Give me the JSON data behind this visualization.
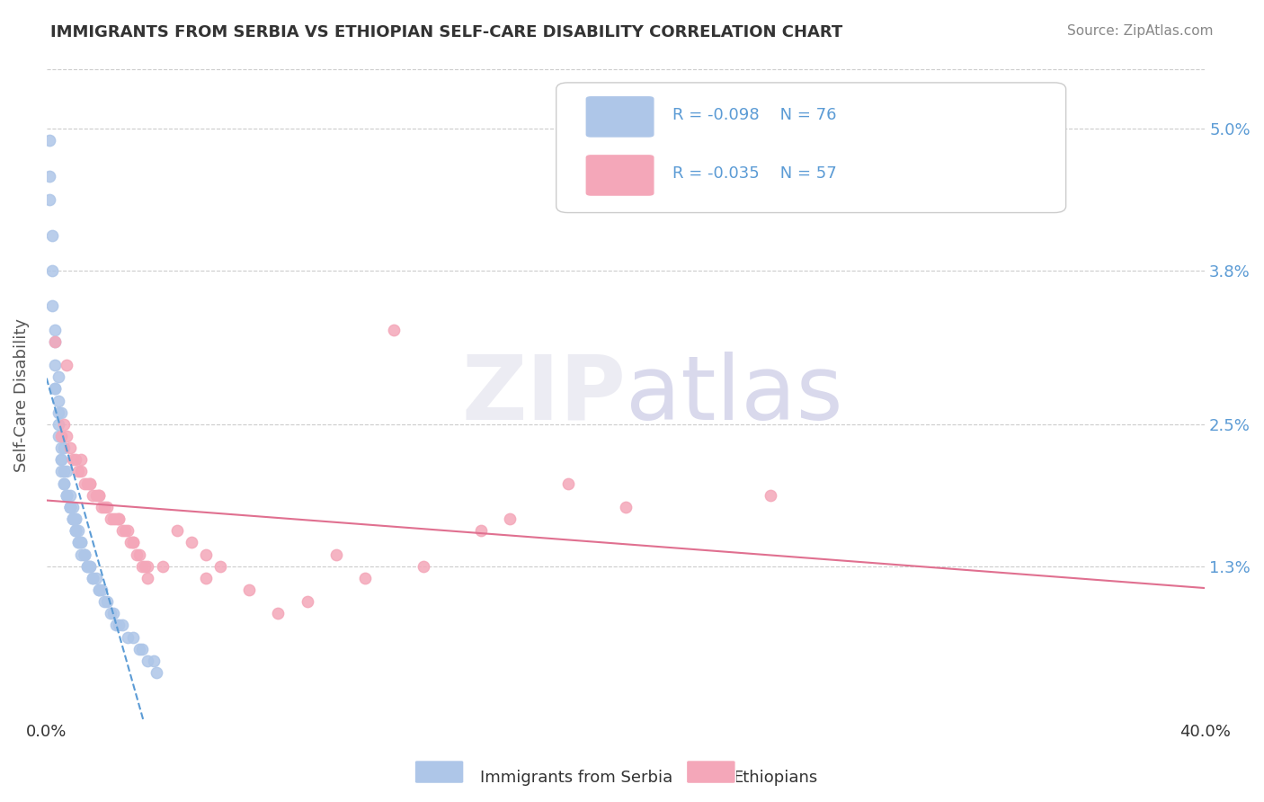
{
  "title": "IMMIGRANTS FROM SERBIA VS ETHIOPIAN SELF-CARE DISABILITY CORRELATION CHART",
  "source": "Source: ZipAtlas.com",
  "xlabel": "",
  "ylabel": "Self-Care Disability",
  "xlim": [
    0.0,
    0.4
  ],
  "ylim": [
    0.0,
    0.055
  ],
  "yticks": [
    0.013,
    0.025,
    0.038,
    0.05
  ],
  "ytick_labels": [
    "1.3%",
    "2.5%",
    "3.8%",
    "5.0%"
  ],
  "xticks": [
    0.0,
    0.4
  ],
  "xtick_labels": [
    "0.0%",
    "40.0%"
  ],
  "legend_r1": "R = -0.098",
  "legend_n1": "N = 76",
  "legend_r2": "R = -0.035",
  "legend_n2": "N = 57",
  "serbia_color": "#aec6e8",
  "ethiopia_color": "#f4a7b9",
  "trend_serbia_color": "#5b9bd5",
  "trend_ethiopia_color": "#e07090",
  "watermark_zip": "ZIP",
  "watermark_atlas": "atlas",
  "legend_bottom_1": "Immigrants from Serbia",
  "legend_bottom_2": "Ethiopians",
  "background_color": "#ffffff",
  "serbia_points": [
    [
      0.001,
      0.049
    ],
    [
      0.001,
      0.046
    ],
    [
      0.002,
      0.038
    ],
    [
      0.002,
      0.035
    ],
    [
      0.003,
      0.032
    ],
    [
      0.003,
      0.03
    ],
    [
      0.003,
      0.028
    ],
    [
      0.004,
      0.027
    ],
    [
      0.004,
      0.025
    ],
    [
      0.004,
      0.024
    ],
    [
      0.005,
      0.023
    ],
    [
      0.005,
      0.022
    ],
    [
      0.005,
      0.022
    ],
    [
      0.005,
      0.021
    ],
    [
      0.006,
      0.021
    ],
    [
      0.006,
      0.02
    ],
    [
      0.006,
      0.02
    ],
    [
      0.007,
      0.019
    ],
    [
      0.007,
      0.019
    ],
    [
      0.007,
      0.019
    ],
    [
      0.008,
      0.018
    ],
    [
      0.008,
      0.018
    ],
    [
      0.008,
      0.018
    ],
    [
      0.008,
      0.018
    ],
    [
      0.009,
      0.017
    ],
    [
      0.009,
      0.017
    ],
    [
      0.009,
      0.017
    ],
    [
      0.01,
      0.017
    ],
    [
      0.01,
      0.016
    ],
    [
      0.01,
      0.016
    ],
    [
      0.01,
      0.016
    ],
    [
      0.011,
      0.016
    ],
    [
      0.011,
      0.015
    ],
    [
      0.011,
      0.015
    ],
    [
      0.012,
      0.015
    ],
    [
      0.012,
      0.015
    ],
    [
      0.012,
      0.014
    ],
    [
      0.013,
      0.014
    ],
    [
      0.013,
      0.014
    ],
    [
      0.013,
      0.014
    ],
    [
      0.014,
      0.013
    ],
    [
      0.014,
      0.013
    ],
    [
      0.015,
      0.013
    ],
    [
      0.015,
      0.013
    ],
    [
      0.016,
      0.012
    ],
    [
      0.016,
      0.012
    ],
    [
      0.017,
      0.012
    ],
    [
      0.018,
      0.011
    ],
    [
      0.018,
      0.011
    ],
    [
      0.019,
      0.011
    ],
    [
      0.02,
      0.01
    ],
    [
      0.021,
      0.01
    ],
    [
      0.022,
      0.009
    ],
    [
      0.023,
      0.009
    ],
    [
      0.024,
      0.008
    ],
    [
      0.025,
      0.008
    ],
    [
      0.026,
      0.008
    ],
    [
      0.028,
      0.007
    ],
    [
      0.03,
      0.007
    ],
    [
      0.032,
      0.006
    ],
    [
      0.033,
      0.006
    ],
    [
      0.035,
      0.005
    ],
    [
      0.037,
      0.005
    ],
    [
      0.038,
      0.004
    ],
    [
      0.001,
      0.044
    ],
    [
      0.002,
      0.041
    ],
    [
      0.003,
      0.033
    ],
    [
      0.004,
      0.029
    ],
    [
      0.005,
      0.026
    ],
    [
      0.006,
      0.023
    ],
    [
      0.007,
      0.021
    ],
    [
      0.008,
      0.019
    ],
    [
      0.009,
      0.018
    ],
    [
      0.01,
      0.017
    ],
    [
      0.003,
      0.028
    ],
    [
      0.004,
      0.026
    ]
  ],
  "ethiopia_points": [
    [
      0.003,
      0.032
    ],
    [
      0.006,
      0.025
    ],
    [
      0.007,
      0.024
    ],
    [
      0.008,
      0.023
    ],
    [
      0.009,
      0.022
    ],
    [
      0.01,
      0.022
    ],
    [
      0.011,
      0.021
    ],
    [
      0.012,
      0.021
    ],
    [
      0.013,
      0.02
    ],
    [
      0.014,
      0.02
    ],
    [
      0.015,
      0.02
    ],
    [
      0.016,
      0.019
    ],
    [
      0.017,
      0.019
    ],
    [
      0.018,
      0.019
    ],
    [
      0.019,
      0.018
    ],
    [
      0.02,
      0.018
    ],
    [
      0.021,
      0.018
    ],
    [
      0.022,
      0.017
    ],
    [
      0.023,
      0.017
    ],
    [
      0.024,
      0.017
    ],
    [
      0.025,
      0.017
    ],
    [
      0.026,
      0.016
    ],
    [
      0.027,
      0.016
    ],
    [
      0.028,
      0.016
    ],
    [
      0.029,
      0.015
    ],
    [
      0.03,
      0.015
    ],
    [
      0.031,
      0.014
    ],
    [
      0.032,
      0.014
    ],
    [
      0.033,
      0.013
    ],
    [
      0.034,
      0.013
    ],
    [
      0.035,
      0.012
    ],
    [
      0.12,
      0.033
    ],
    [
      0.045,
      0.016
    ],
    [
      0.05,
      0.015
    ],
    [
      0.055,
      0.014
    ],
    [
      0.18,
      0.02
    ],
    [
      0.06,
      0.013
    ],
    [
      0.007,
      0.03
    ],
    [
      0.012,
      0.022
    ],
    [
      0.018,
      0.019
    ],
    [
      0.025,
      0.017
    ],
    [
      0.03,
      0.015
    ],
    [
      0.04,
      0.013
    ],
    [
      0.055,
      0.012
    ],
    [
      0.1,
      0.014
    ],
    [
      0.15,
      0.016
    ],
    [
      0.2,
      0.018
    ],
    [
      0.25,
      0.019
    ],
    [
      0.005,
      0.024
    ],
    [
      0.015,
      0.02
    ],
    [
      0.035,
      0.013
    ],
    [
      0.07,
      0.011
    ],
    [
      0.11,
      0.012
    ],
    [
      0.16,
      0.017
    ],
    [
      0.09,
      0.01
    ],
    [
      0.08,
      0.009
    ],
    [
      0.13,
      0.013
    ]
  ]
}
